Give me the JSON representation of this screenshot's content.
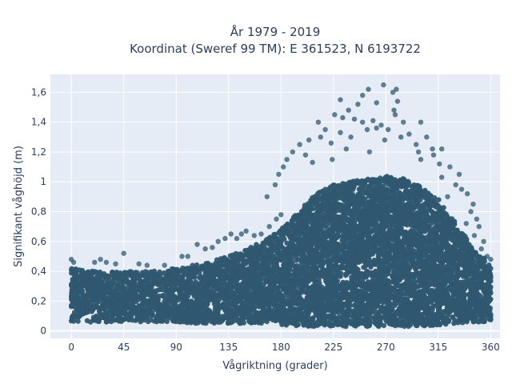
{
  "chart_data": {
    "type": "scatter",
    "title": "År 1979 - 2019",
    "subtitle": "Koordinat (Sweref 99 TM): E 361523, N 6193722",
    "xlabel": "Vågriktning (grader)",
    "ylabel": "Signifikant våghöjd (m)",
    "xlim": [
      -18,
      368
    ],
    "ylim": [
      -0.05,
      1.72
    ],
    "x_ticks": [
      0,
      45,
      90,
      135,
      180,
      225,
      270,
      315,
      360
    ],
    "y_ticks": [
      0,
      0.2,
      0.4,
      0.6,
      0.8,
      1,
      1.2,
      1.4,
      1.6
    ],
    "y_tick_labels": [
      "0",
      "0,2",
      "0,4",
      "0,6",
      "0,8",
      "1",
      "1,2",
      "1,4",
      "1,6"
    ],
    "grid": true,
    "legend": "none",
    "colors": {
      "marker": "#2f5870",
      "plot_bg": "#e5ecf6",
      "grid": "#ffffff",
      "text": "#2a3f5f"
    },
    "envelope": {
      "x": [
        0,
        20,
        45,
        70,
        90,
        110,
        135,
        150,
        165,
        180,
        195,
        210,
        225,
        240,
        255,
        270,
        285,
        300,
        315,
        330,
        345,
        360
      ],
      "dense_max": [
        0.42,
        0.4,
        0.4,
        0.4,
        0.42,
        0.45,
        0.5,
        0.55,
        0.6,
        0.68,
        0.8,
        0.92,
        0.98,
        1.0,
        1.02,
        1.04,
        1.02,
        0.97,
        0.88,
        0.72,
        0.55,
        0.45
      ],
      "min": [
        0.06,
        0.06,
        0.06,
        0.06,
        0.06,
        0.05,
        0.05,
        0.05,
        0.05,
        0.04,
        0.03,
        0.03,
        0.03,
        0.03,
        0.03,
        0.03,
        0.03,
        0.03,
        0.04,
        0.05,
        0.06,
        0.06
      ]
    },
    "outliers": [
      {
        "x": 255,
        "y": 1.62
      },
      {
        "x": 268,
        "y": 1.65
      },
      {
        "x": 276,
        "y": 1.6
      },
      {
        "x": 279,
        "y": 1.62
      },
      {
        "x": 231,
        "y": 1.55
      },
      {
        "x": 250,
        "y": 1.58
      },
      {
        "x": 262,
        "y": 1.53
      },
      {
        "x": 280,
        "y": 1.54
      },
      {
        "x": 238,
        "y": 1.48
      },
      {
        "x": 246,
        "y": 1.52
      },
      {
        "x": 277,
        "y": 1.48
      },
      {
        "x": 278,
        "y": 1.45
      },
      {
        "x": 212,
        "y": 1.4
      },
      {
        "x": 226,
        "y": 1.45
      },
      {
        "x": 233,
        "y": 1.43
      },
      {
        "x": 243,
        "y": 1.42
      },
      {
        "x": 250,
        "y": 1.4
      },
      {
        "x": 259,
        "y": 1.41
      },
      {
        "x": 266,
        "y": 1.38
      },
      {
        "x": 285,
        "y": 1.4
      },
      {
        "x": 300,
        "y": 1.4
      },
      {
        "x": 218,
        "y": 1.35
      },
      {
        "x": 231,
        "y": 1.33
      },
      {
        "x": 254,
        "y": 1.35
      },
      {
        "x": 262,
        "y": 1.36
      },
      {
        "x": 272,
        "y": 1.35
      },
      {
        "x": 290,
        "y": 1.32
      },
      {
        "x": 305,
        "y": 1.3
      },
      {
        "x": 196,
        "y": 1.25
      },
      {
        "x": 204,
        "y": 1.28
      },
      {
        "x": 214,
        "y": 1.3
      },
      {
        "x": 223,
        "y": 1.26
      },
      {
        "x": 240,
        "y": 1.3
      },
      {
        "x": 269,
        "y": 1.28
      },
      {
        "x": 283,
        "y": 1.3
      },
      {
        "x": 296,
        "y": 1.25
      },
      {
        "x": 310,
        "y": 1.22
      },
      {
        "x": 190,
        "y": 1.2
      },
      {
        "x": 201,
        "y": 1.18
      },
      {
        "x": 236,
        "y": 1.22
      },
      {
        "x": 256,
        "y": 1.2
      },
      {
        "x": 298,
        "y": 1.2
      },
      {
        "x": 311,
        "y": 1.18
      },
      {
        "x": 318,
        "y": 1.22
      },
      {
        "x": 185,
        "y": 1.15
      },
      {
        "x": 207,
        "y": 1.13
      },
      {
        "x": 224,
        "y": 1.15
      },
      {
        "x": 300,
        "y": 1.15
      },
      {
        "x": 316,
        "y": 1.12
      },
      {
        "x": 325,
        "y": 1.1
      },
      {
        "x": 333,
        "y": 1.05
      },
      {
        "x": 178,
        "y": 1.05
      },
      {
        "x": 182,
        "y": 1.1
      },
      {
        "x": 318,
        "y": 1.03
      },
      {
        "x": 330,
        "y": 0.98
      },
      {
        "x": 335,
        "y": 0.95
      },
      {
        "x": 340,
        "y": 0.92
      },
      {
        "x": 323,
        "y": 0.9
      },
      {
        "x": 175,
        "y": 0.98
      },
      {
        "x": 168,
        "y": 0.9
      },
      {
        "x": 345,
        "y": 0.85
      },
      {
        "x": 343,
        "y": 0.8
      },
      {
        "x": 348,
        "y": 0.75
      },
      {
        "x": 350,
        "y": 0.7
      },
      {
        "x": 339,
        "y": 0.72
      },
      {
        "x": 354,
        "y": 0.6
      },
      {
        "x": 346,
        "y": 0.64
      },
      {
        "x": 352,
        "y": 0.55
      },
      {
        "x": 357,
        "y": 0.5
      },
      {
        "x": 360,
        "y": 0.48
      },
      {
        "x": 0,
        "y": 0.48
      },
      {
        "x": 2,
        "y": 0.46
      },
      {
        "x": 20,
        "y": 0.46
      },
      {
        "x": 25,
        "y": 0.48
      },
      {
        "x": 30,
        "y": 0.46
      },
      {
        "x": 38,
        "y": 0.45
      },
      {
        "x": 45,
        "y": 0.52
      },
      {
        "x": 58,
        "y": 0.45
      },
      {
        "x": 65,
        "y": 0.44
      },
      {
        "x": 80,
        "y": 0.44
      },
      {
        "x": 95,
        "y": 0.5
      },
      {
        "x": 100,
        "y": 0.5
      },
      {
        "x": 108,
        "y": 0.58
      },
      {
        "x": 115,
        "y": 0.55
      },
      {
        "x": 121,
        "y": 0.56
      },
      {
        "x": 126,
        "y": 0.6
      },
      {
        "x": 132,
        "y": 0.62
      },
      {
        "x": 137,
        "y": 0.65
      },
      {
        "x": 142,
        "y": 0.62
      },
      {
        "x": 146,
        "y": 0.65
      },
      {
        "x": 150,
        "y": 0.67
      },
      {
        "x": 157,
        "y": 0.64
      },
      {
        "x": 163,
        "y": 0.65
      },
      {
        "x": 170,
        "y": 0.7
      },
      {
        "x": 176,
        "y": 0.75
      },
      {
        "x": 180,
        "y": 0.78
      }
    ]
  }
}
